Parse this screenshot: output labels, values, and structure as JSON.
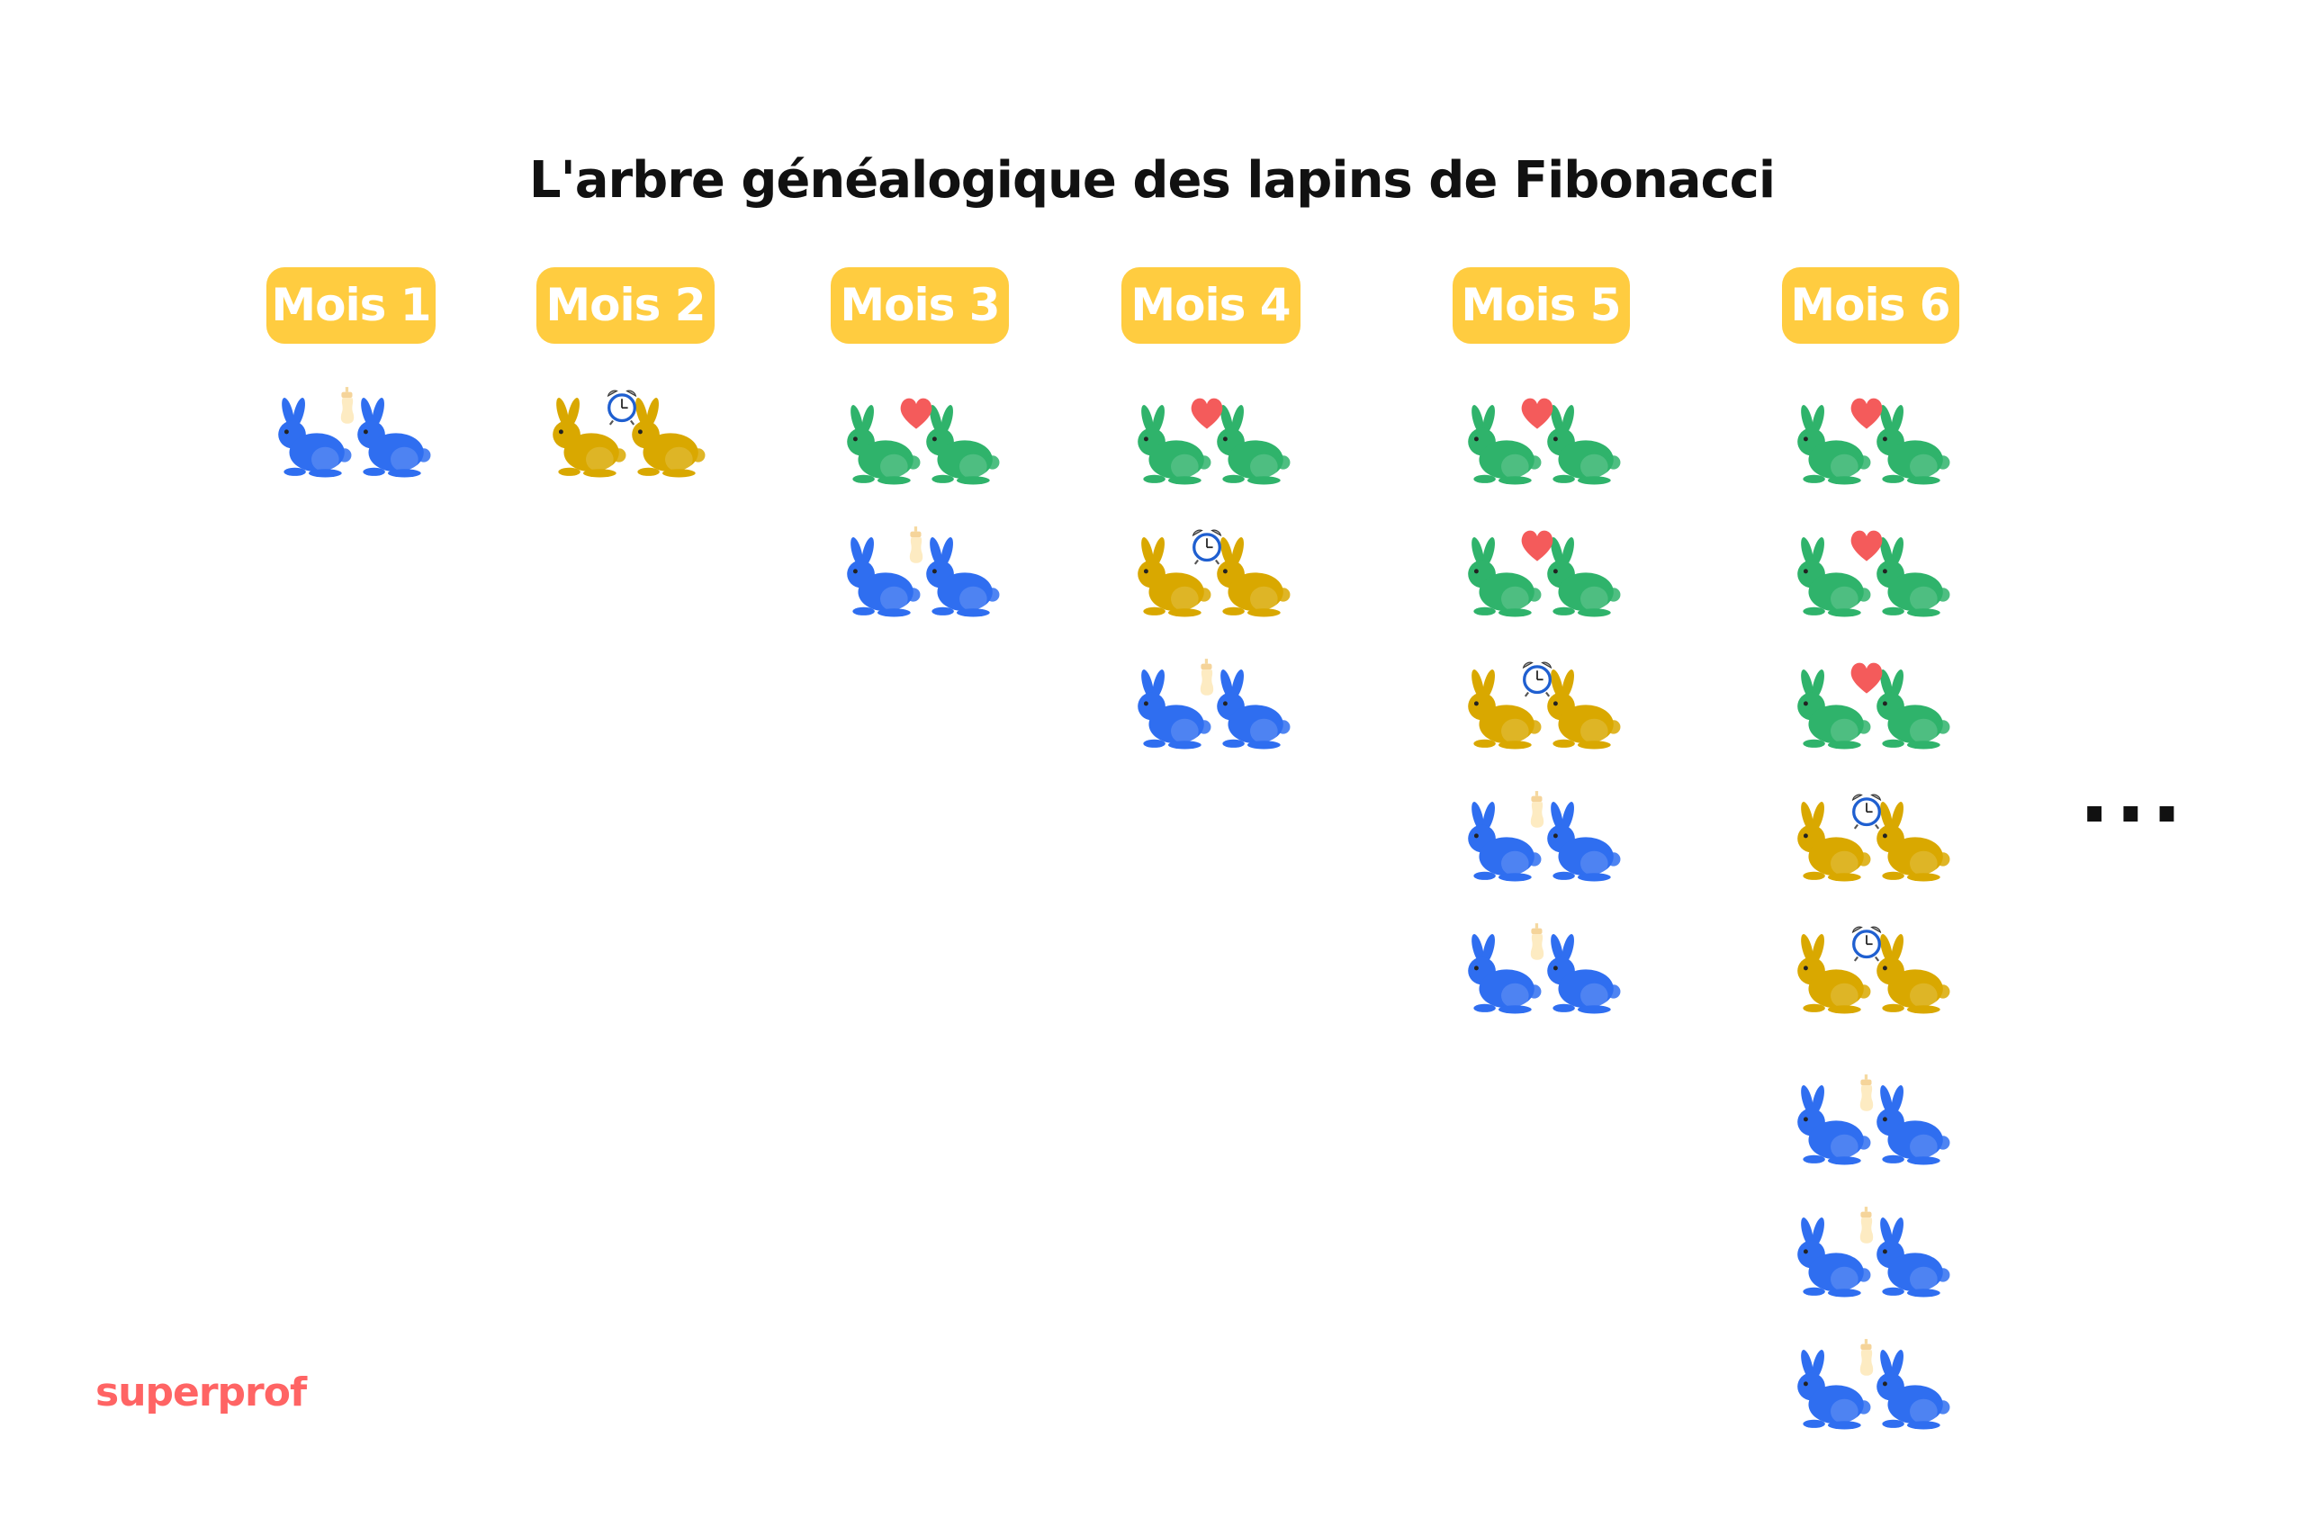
{
  "title": "L'arbre généalogique des lapins de Fibonacci",
  "colors": {
    "label_bg": "#ffcc40",
    "adult": "#2fb36b",
    "young": "#d9a800",
    "newborn": "#2f6ef0",
    "heart": "#f45b5b",
    "logo": "#ff6464"
  },
  "legend_types": {
    "adult": {
      "rabbit_color": "green",
      "icon": "heart-icon"
    },
    "young": {
      "rabbit_color": "gold",
      "icon": "alarm-clock-icon"
    },
    "newborn": {
      "rabbit_color": "blue",
      "icon": "baby-bottle-icon"
    }
  },
  "months": [
    {
      "label": "Mois 1",
      "pairs": [
        "newborn"
      ]
    },
    {
      "label": "Mois 2",
      "pairs": [
        "young"
      ]
    },
    {
      "label": "Mois 3",
      "pairs": [
        "adult",
        "newborn"
      ]
    },
    {
      "label": "Mois 4",
      "pairs": [
        "adult",
        "young",
        "newborn"
      ]
    },
    {
      "label": "Mois 5",
      "pairs": [
        "adult",
        "adult",
        "young",
        "newborn",
        "newborn"
      ]
    },
    {
      "label": "Mois 6",
      "pairs": [
        "adult",
        "adult",
        "adult",
        "young",
        "young",
        "newborn",
        "newborn",
        "newborn"
      ]
    }
  ],
  "ellipsis": "...",
  "logo": "superprof"
}
